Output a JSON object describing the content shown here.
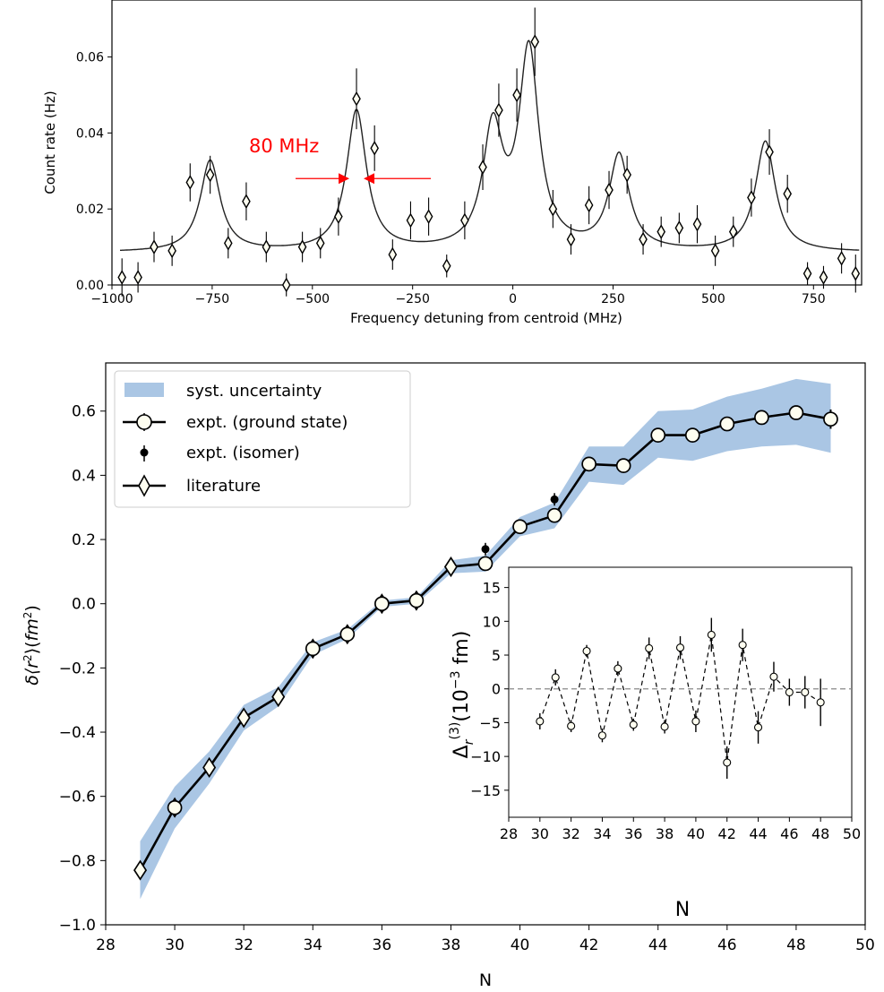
{
  "colors": {
    "band": "#aac6e4",
    "line": "#000000",
    "annotation": "#ff0000",
    "dashed_zero": "#888888"
  },
  "chart_data": [
    {
      "type": "scatter",
      "xlabel": "Frequency detuning from centroid (MHz)",
      "ylabel": "Count rate (Hz)",
      "xlim": [
        -1000,
        870
      ],
      "ylim": [
        0,
        0.075
      ],
      "xticks": [
        -1000,
        -750,
        -500,
        -250,
        0,
        250,
        500,
        750
      ],
      "xtick_labels": [
        "−1000",
        "−750",
        "−500",
        "−250",
        "0",
        "250",
        "500",
        "750"
      ],
      "yticks": [
        0,
        0.02,
        0.04,
        0.06
      ],
      "ytick_labels": [
        "0.00",
        "0.02",
        "0.04",
        "0.06"
      ],
      "marker": "thin-diamond",
      "points": [
        {
          "x": -975,
          "y": 0.002,
          "err": 0.005
        },
        {
          "x": -935,
          "y": 0.002,
          "err": 0.004
        },
        {
          "x": -895,
          "y": 0.01,
          "err": 0.004
        },
        {
          "x": -850,
          "y": 0.009,
          "err": 0.004
        },
        {
          "x": -805,
          "y": 0.027,
          "err": 0.005
        },
        {
          "x": -755,
          "y": 0.029,
          "err": 0.005
        },
        {
          "x": -710,
          "y": 0.011,
          "err": 0.004
        },
        {
          "x": -665,
          "y": 0.022,
          "err": 0.005
        },
        {
          "x": -615,
          "y": 0.01,
          "err": 0.004
        },
        {
          "x": -565,
          "y": 0.0,
          "err": 0.003
        },
        {
          "x": -525,
          "y": 0.01,
          "err": 0.004
        },
        {
          "x": -480,
          "y": 0.011,
          "err": 0.004
        },
        {
          "x": -435,
          "y": 0.018,
          "err": 0.005
        },
        {
          "x": -390,
          "y": 0.049,
          "err": 0.008
        },
        {
          "x": -345,
          "y": 0.036,
          "err": 0.006
        },
        {
          "x": -300,
          "y": 0.008,
          "err": 0.004
        },
        {
          "x": -255,
          "y": 0.017,
          "err": 0.005
        },
        {
          "x": -210,
          "y": 0.018,
          "err": 0.005
        },
        {
          "x": -165,
          "y": 0.005,
          "err": 0.003
        },
        {
          "x": -120,
          "y": 0.017,
          "err": 0.005
        },
        {
          "x": -75,
          "y": 0.031,
          "err": 0.006
        },
        {
          "x": -35,
          "y": 0.046,
          "err": 0.007
        },
        {
          "x": 10,
          "y": 0.05,
          "err": 0.007
        },
        {
          "x": 55,
          "y": 0.064,
          "err": 0.009
        },
        {
          "x": 100,
          "y": 0.02,
          "err": 0.005
        },
        {
          "x": 145,
          "y": 0.012,
          "err": 0.004
        },
        {
          "x": 190,
          "y": 0.021,
          "err": 0.005
        },
        {
          "x": 240,
          "y": 0.025,
          "err": 0.005
        },
        {
          "x": 285,
          "y": 0.029,
          "err": 0.005
        },
        {
          "x": 325,
          "y": 0.012,
          "err": 0.004
        },
        {
          "x": 370,
          "y": 0.014,
          "err": 0.004
        },
        {
          "x": 415,
          "y": 0.015,
          "err": 0.004
        },
        {
          "x": 460,
          "y": 0.016,
          "err": 0.005
        },
        {
          "x": 505,
          "y": 0.009,
          "err": 0.004
        },
        {
          "x": 550,
          "y": 0.014,
          "err": 0.004
        },
        {
          "x": 595,
          "y": 0.023,
          "err": 0.005
        },
        {
          "x": 640,
          "y": 0.035,
          "err": 0.006
        },
        {
          "x": 685,
          "y": 0.024,
          "err": 0.005
        },
        {
          "x": 735,
          "y": 0.003,
          "err": 0.003
        },
        {
          "x": 775,
          "y": 0.002,
          "err": 0.003
        },
        {
          "x": 820,
          "y": 0.007,
          "err": 0.004
        },
        {
          "x": 855,
          "y": 0.003,
          "err": 0.005
        }
      ],
      "fit_curve": {
        "background": 0.0085,
        "peaks": [
          {
            "center": -755,
            "height": 0.024,
            "width": 30
          },
          {
            "center": -390,
            "height": 0.037,
            "width": 30
          },
          {
            "center": -50,
            "height": 0.031,
            "width": 30
          },
          {
            "center": 40,
            "height": 0.052,
            "width": 30
          },
          {
            "center": 265,
            "height": 0.025,
            "width": 30
          },
          {
            "center": 630,
            "height": 0.029,
            "width": 30
          }
        ]
      },
      "annotation": {
        "text": "80 MHz",
        "at_x": -390,
        "at_y": 0.028
      }
    },
    {
      "type": "line",
      "xlabel": "N",
      "ylabel": "δ⟨r²⟩(fm²)",
      "xlim": [
        28,
        50
      ],
      "ylim": [
        -1.0,
        0.75
      ],
      "xticks": [
        28,
        30,
        32,
        34,
        36,
        38,
        40,
        42,
        44,
        46,
        48,
        50
      ],
      "yticks": [
        -1.0,
        -0.8,
        -0.6,
        -0.4,
        -0.2,
        0.0,
        0.2,
        0.4,
        0.6
      ],
      "ytick_labels": [
        "−1.0",
        "−0.8",
        "−0.6",
        "−0.4",
        "−0.2",
        "0.0",
        "0.2",
        "0.4",
        "0.6"
      ],
      "legend": {
        "placement": "upper-left",
        "entries": [
          "syst. uncertainty",
          "expt. (ground state)",
          "expt. (isomer)",
          "literature"
        ]
      },
      "series": [
        {
          "name": "literature",
          "marker": "diamond",
          "x": [
            29,
            30,
            31,
            32,
            33,
            34,
            35,
            36,
            37,
            38
          ],
          "y": [
            -0.83,
            -0.635,
            -0.51,
            -0.355,
            -0.29,
            -0.14,
            -0.095,
            0.0,
            0.01,
            0.115
          ]
        },
        {
          "name": "expt. (ground state)",
          "marker": "circle",
          "x": [
            30,
            34,
            35,
            36,
            37,
            39,
            40,
            41,
            42,
            43,
            44,
            45,
            46,
            47,
            48,
            49
          ],
          "y": [
            -0.635,
            -0.14,
            -0.095,
            0.0,
            0.01,
            0.125,
            0.24,
            0.275,
            0.435,
            0.43,
            0.525,
            0.525,
            0.56,
            0.58,
            0.595,
            0.575
          ]
        },
        {
          "name": "expt. (isomer)",
          "marker": "dot",
          "x": [
            39,
            41
          ],
          "y": [
            0.17,
            0.325
          ]
        }
      ],
      "main_line": {
        "x": [
          29,
          30,
          31,
          32,
          33,
          34,
          35,
          36,
          37,
          38,
          39,
          40,
          41,
          42,
          43,
          44,
          45,
          46,
          47,
          48,
          49
        ],
        "y": [
          -0.83,
          -0.635,
          -0.51,
          -0.355,
          -0.29,
          -0.14,
          -0.095,
          0.0,
          0.01,
          0.115,
          0.125,
          0.24,
          0.275,
          0.435,
          0.43,
          0.525,
          0.525,
          0.56,
          0.58,
          0.595,
          0.575
        ]
      },
      "uncertainty_band": {
        "x": [
          29,
          30,
          31,
          32,
          33,
          34,
          35,
          36,
          37,
          38,
          39,
          40,
          41,
          42,
          43,
          44,
          45,
          46,
          47,
          48,
          49
        ],
        "lower": [
          -0.92,
          -0.7,
          -0.56,
          -0.395,
          -0.32,
          -0.16,
          -0.11,
          -0.01,
          0.0,
          0.095,
          0.1,
          0.21,
          0.235,
          0.38,
          0.37,
          0.455,
          0.445,
          0.475,
          0.49,
          0.495,
          0.47
        ],
        "upper": [
          -0.74,
          -0.57,
          -0.46,
          -0.315,
          -0.26,
          -0.12,
          -0.08,
          0.01,
          0.02,
          0.135,
          0.15,
          0.27,
          0.315,
          0.49,
          0.49,
          0.6,
          0.605,
          0.645,
          0.67,
          0.7,
          0.685
        ]
      },
      "errors": {
        "49": 0.03
      }
    },
    {
      "type": "line",
      "role": "inset",
      "xlabel": "N",
      "ylabel": "Δr(3)(10−3 fm)",
      "xlim": [
        28,
        50
      ],
      "ylim": [
        -19,
        18
      ],
      "xticks": [
        28,
        30,
        32,
        34,
        36,
        38,
        40,
        42,
        44,
        46,
        48,
        50
      ],
      "yticks": [
        -15,
        -10,
        -5,
        0,
        5,
        10,
        15
      ],
      "ytick_labels": [
        "−15",
        "−10",
        "−5",
        "0",
        "5",
        "10",
        "15"
      ],
      "zero_line": "dashed",
      "points": [
        {
          "x": 30,
          "y": -4.8,
          "err": 1.2
        },
        {
          "x": 31,
          "y": 1.7,
          "err": 1.2
        },
        {
          "x": 32,
          "y": -5.5,
          "err": 0.9
        },
        {
          "x": 33,
          "y": 5.6,
          "err": 0.9
        },
        {
          "x": 34,
          "y": -6.9,
          "err": 1.0
        },
        {
          "x": 35,
          "y": 3.0,
          "err": 1.1
        },
        {
          "x": 36,
          "y": -5.3,
          "err": 0.9
        },
        {
          "x": 37,
          "y": 6.0,
          "err": 1.6
        },
        {
          "x": 38,
          "y": -5.6,
          "err": 1.0
        },
        {
          "x": 39,
          "y": 6.1,
          "err": 1.7
        },
        {
          "x": 40,
          "y": -4.8,
          "err": 1.6
        },
        {
          "x": 41,
          "y": 8.0,
          "err": 2.5
        },
        {
          "x": 42,
          "y": -10.9,
          "err": 2.4
        },
        {
          "x": 43,
          "y": 6.5,
          "err": 2.4
        },
        {
          "x": 44,
          "y": -5.7,
          "err": 2.4
        },
        {
          "x": 45,
          "y": 1.8,
          "err": 2.2
        },
        {
          "x": 46,
          "y": -0.5,
          "err": 2.0
        },
        {
          "x": 47,
          "y": -0.5,
          "err": 2.4
        },
        {
          "x": 48,
          "y": -2.0,
          "err": 3.5
        }
      ]
    }
  ]
}
